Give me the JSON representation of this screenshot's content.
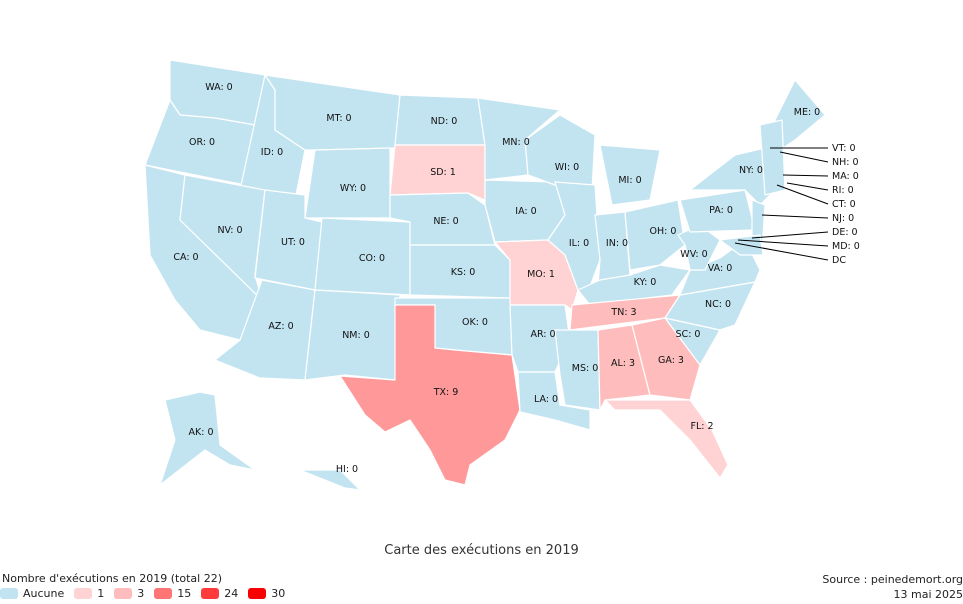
{
  "map": {
    "title": "Carte des exécutions en 2019",
    "colors": {
      "none": "#c2e4f0",
      "c1": "#ffd3d3",
      "c3": "#ffbcbc",
      "c9": "#ff9999",
      "c15": "#ff7474",
      "c24": "#ff3a3a",
      "c30": "#f90000"
    },
    "states": [
      {
        "code": "WA",
        "label": "WA: 0",
        "value": 0
      },
      {
        "code": "OR",
        "label": "OR: 0",
        "value": 0
      },
      {
        "code": "CA",
        "label": "CA: 0",
        "value": 0
      },
      {
        "code": "ID",
        "label": "ID: 0",
        "value": 0
      },
      {
        "code": "NV",
        "label": "NV: 0",
        "value": 0
      },
      {
        "code": "AZ",
        "label": "AZ: 0",
        "value": 0
      },
      {
        "code": "MT",
        "label": "MT: 0",
        "value": 0
      },
      {
        "code": "WY",
        "label": "WY: 0",
        "value": 0
      },
      {
        "code": "UT",
        "label": "UT: 0",
        "value": 0
      },
      {
        "code": "CO",
        "label": "CO: 0",
        "value": 0
      },
      {
        "code": "NM",
        "label": "NM: 0",
        "value": 0
      },
      {
        "code": "ND",
        "label": "ND: 0",
        "value": 0
      },
      {
        "code": "SD",
        "label": "SD: 1",
        "value": 1
      },
      {
        "code": "NE",
        "label": "NE: 0",
        "value": 0
      },
      {
        "code": "KS",
        "label": "KS: 0",
        "value": 0
      },
      {
        "code": "OK",
        "label": "OK: 0",
        "value": 0
      },
      {
        "code": "TX",
        "label": "TX: 9",
        "value": 9
      },
      {
        "code": "MN",
        "label": "MN: 0",
        "value": 0
      },
      {
        "code": "IA",
        "label": "IA: 0",
        "value": 0
      },
      {
        "code": "MO",
        "label": "MO: 1",
        "value": 1
      },
      {
        "code": "AR",
        "label": "AR: 0",
        "value": 0
      },
      {
        "code": "LA",
        "label": "LA: 0",
        "value": 0
      },
      {
        "code": "WI",
        "label": "WI: 0",
        "value": 0
      },
      {
        "code": "IL",
        "label": "IL: 0",
        "value": 0
      },
      {
        "code": "MI",
        "label": "MI: 0",
        "value": 0
      },
      {
        "code": "IN",
        "label": "IN: 0",
        "value": 0
      },
      {
        "code": "OH",
        "label": "OH: 0",
        "value": 0
      },
      {
        "code": "KY",
        "label": "KY: 0",
        "value": 0
      },
      {
        "code": "TN",
        "label": "TN: 3",
        "value": 3
      },
      {
        "code": "MS",
        "label": "MS: 0",
        "value": 0
      },
      {
        "code": "AL",
        "label": "AL: 3",
        "value": 3
      },
      {
        "code": "GA",
        "label": "GA: 3",
        "value": 3
      },
      {
        "code": "FL",
        "label": "FL: 2",
        "value": 2
      },
      {
        "code": "SC",
        "label": "SC: 0",
        "value": 0
      },
      {
        "code": "NC",
        "label": "NC: 0",
        "value": 0
      },
      {
        "code": "VA",
        "label": "VA: 0",
        "value": 0
      },
      {
        "code": "WV",
        "label": "WV: 0",
        "value": 0
      },
      {
        "code": "PA",
        "label": "PA: 0",
        "value": 0
      },
      {
        "code": "NY",
        "label": "NY: 0",
        "value": 0
      },
      {
        "code": "ME",
        "label": "ME: 0",
        "value": 0
      },
      {
        "code": "AK",
        "label": "AK: 0",
        "value": 0
      },
      {
        "code": "HI",
        "label": "HI: 0",
        "value": 0
      }
    ],
    "callouts": [
      {
        "code": "VT",
        "label": "VT: 0",
        "value": 0
      },
      {
        "code": "NH",
        "label": "NH: 0",
        "value": 0
      },
      {
        "code": "MA",
        "label": "MA: 0",
        "value": 0
      },
      {
        "code": "RI",
        "label": "RI: 0",
        "value": 0
      },
      {
        "code": "CT",
        "label": "CT: 0",
        "value": 0
      },
      {
        "code": "NJ",
        "label": "NJ: 0",
        "value": 0
      },
      {
        "code": "DE",
        "label": "DE: 0",
        "value": 0
      },
      {
        "code": "MD",
        "label": "MD: 0",
        "value": 0
      },
      {
        "code": "DC",
        "label": "DC",
        "value": 0
      }
    ]
  },
  "legend": {
    "title": "Nombre d'exécutions en 2019 (total 22)",
    "items": [
      {
        "label": "Aucune",
        "color": "#c2e4f0"
      },
      {
        "label": "1",
        "color": "#ffd3d3"
      },
      {
        "label": "3",
        "color": "#ffbcbc"
      },
      {
        "label": "15",
        "color": "#ff7474"
      },
      {
        "label": "24",
        "color": "#ff3a3a"
      },
      {
        "label": "30",
        "color": "#f90000"
      }
    ]
  },
  "source": {
    "text": "Source : peinedemort.org",
    "date": "13 mai 2025"
  }
}
